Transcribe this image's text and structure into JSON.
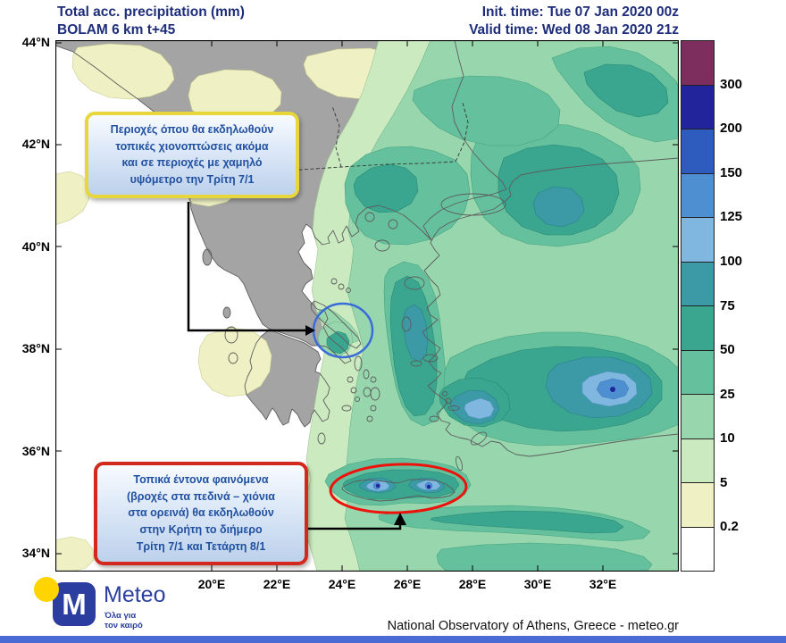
{
  "header": {
    "product": "Total acc. precipitation (mm)",
    "model": "BOLAM 6 km t+45",
    "init_time": "Init. time: Tue 07 Jan 2020 00z",
    "valid_time": "Valid time: Wed 08 Jan 2020 21z"
  },
  "axes": {
    "lat_labels": [
      "44°N",
      "42°N",
      "40°N",
      "38°N",
      "36°N",
      "34°N"
    ],
    "lon_labels": [
      "20°E",
      "22°E",
      "24°E",
      "26°E",
      "28°E",
      "30°E",
      "32°E"
    ]
  },
  "colorbar": {
    "labels": [
      "300",
      "200",
      "150",
      "125",
      "100",
      "75",
      "50",
      "25",
      "10",
      "5",
      "0.2"
    ],
    "colors": [
      "#7d2e5f",
      "#22249c",
      "#2d5cbe",
      "#4e8fd2",
      "#80b7e0",
      "#3b9aa6",
      "#3aa68f",
      "#65c19d",
      "#98d7ae",
      "#cbeabf",
      "#eff1c4",
      "#ffffff"
    ]
  },
  "annotations": {
    "snow_box": {
      "lines": [
        "Περιοχές όπου θα εκδηλωθούν",
        "τοπικές χιονοπτώσεις ακόμα",
        "και σε περιοχές με χαμηλό",
        "υψόμετρο την Τρίτη 7/1"
      ]
    },
    "crete_box": {
      "lines": [
        "Τοπικά έντονα φαινόμενα",
        "(βροχές στα πεδινά – χιόνια",
        "στα ορεινά) θα εκδηλωθούν",
        "στην Κρήτη το διήμερο",
        "Τρίτη 7/1 και Τετάρτη 8/1"
      ]
    }
  },
  "logo": {
    "letter": "M",
    "name": "Meteo",
    "tagline_line1": "Όλα για",
    "tagline_line2": "τον καιρό"
  },
  "footer": {
    "credit": "National Observatory of Athens, Greece - meteo.gr"
  }
}
